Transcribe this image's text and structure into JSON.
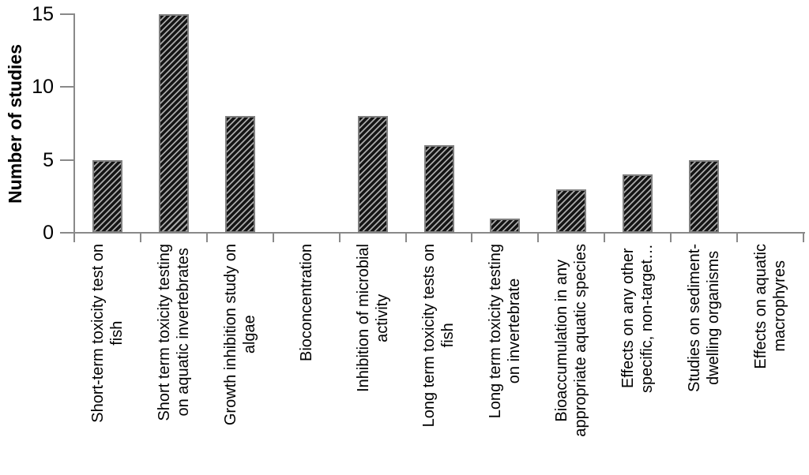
{
  "colors": {
    "background": "#ffffff",
    "text": "#000000",
    "axis": "#898989",
    "bar_border": "#7f7f7f",
    "hatch_dark": "#151515",
    "hatch_light": "#a9a9a9"
  },
  "chart_data": {
    "type": "bar",
    "title": "",
    "xlabel": "",
    "ylabel": "Number of studies",
    "ylim": [
      0,
      15
    ],
    "yticks": [
      0,
      5,
      10,
      15
    ],
    "grid": false,
    "legend_position": "none",
    "bar_hatch": "diagonal-forward",
    "categories": [
      "Short-term toxicity test on\nfish",
      "Short term toxicity testing\non aquatic invertebrates",
      "Growth inhibition study on\nalgae",
      "Bioconcentration",
      "Inhibition of microbial\nactivity",
      "Long term toxicity tests on\nfish",
      "Long term toxicity testing\non invertebrate",
      "Bioaccumulation in any\nappropriate aquatic species",
      "Effects on any other\nspecific, non-target…",
      "Studies on sediment-\ndwelling organisms",
      "Effects on aquatic\nmacrophyres"
    ],
    "values": [
      5,
      15,
      8,
      0,
      8,
      6,
      1,
      3,
      4,
      5,
      0
    ]
  }
}
